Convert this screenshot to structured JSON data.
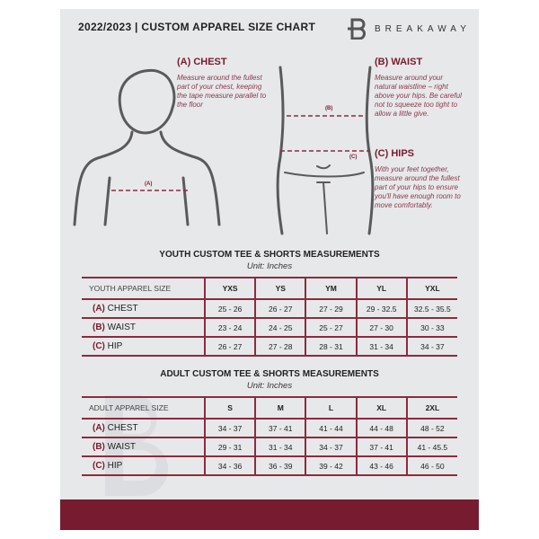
{
  "header": {
    "title": "2022/2023  |  CUSTOM APPAREL SIZE CHART",
    "brand": "BREAKAWAY"
  },
  "guide": {
    "chest": {
      "title": "(A) CHEST",
      "desc": "Measure around the fullest part of your chest, keeping the tape measure parallel to the floor",
      "marker": "(A)"
    },
    "waist": {
      "title": "(B) WAIST",
      "desc": "Measure around your natural waistline – right above your hips. Be careful not to squeeze too tight to allow a little give.",
      "marker": "(B)"
    },
    "hips": {
      "title": "(C) HIPS",
      "desc": "With your feet together, measure around the fullest part of your hips to ensure you'll have enough room to move comfortably.",
      "marker": "(C)"
    }
  },
  "youth": {
    "title": "YOUTH CUSTOM TEE & SHORTS MEASUREMENTS",
    "unit": "Unit: Inches",
    "header": "YOUTH APPAREL SIZE",
    "sizes": [
      "YXS",
      "YS",
      "YM",
      "YL",
      "YXL"
    ],
    "rows": [
      {
        "code": "(A)",
        "name": "CHEST",
        "values": [
          "25 - 26",
          "26 - 27",
          "27 - 29",
          "29 - 32.5",
          "32.5 - 35.5"
        ]
      },
      {
        "code": "(B)",
        "name": "WAIST",
        "values": [
          "23 - 24",
          "24 - 25",
          "25 - 27",
          "27 - 30",
          "30 - 33"
        ]
      },
      {
        "code": "(C)",
        "name": "HIP",
        "values": [
          "26 - 27",
          "27 - 28",
          "28 - 31",
          "31 - 34",
          "34 - 37"
        ]
      }
    ]
  },
  "adult": {
    "title": "ADULT CUSTOM TEE & SHORTS MEASUREMENTS",
    "unit": "Unit: Inches",
    "header": "ADULT APPAREL SIZE",
    "sizes": [
      "S",
      "M",
      "L",
      "XL",
      "2XL"
    ],
    "rows": [
      {
        "code": "(A)",
        "name": "CHEST",
        "values": [
          "34 - 37",
          "37 - 41",
          "41 - 44",
          "44 - 48",
          "48 - 52"
        ]
      },
      {
        "code": "(B)",
        "name": "WAIST",
        "values": [
          "29 - 31",
          "31 - 34",
          "34 - 37",
          "37 - 41",
          "41 - 45.5"
        ]
      },
      {
        "code": "(C)",
        "name": "HIP",
        "values": [
          "34 - 36",
          "36 - 39",
          "39 - 42",
          "43 - 46",
          "46 - 50"
        ]
      }
    ]
  },
  "colors": {
    "accent": "#771b31",
    "panel": "#e7e8ea"
  }
}
